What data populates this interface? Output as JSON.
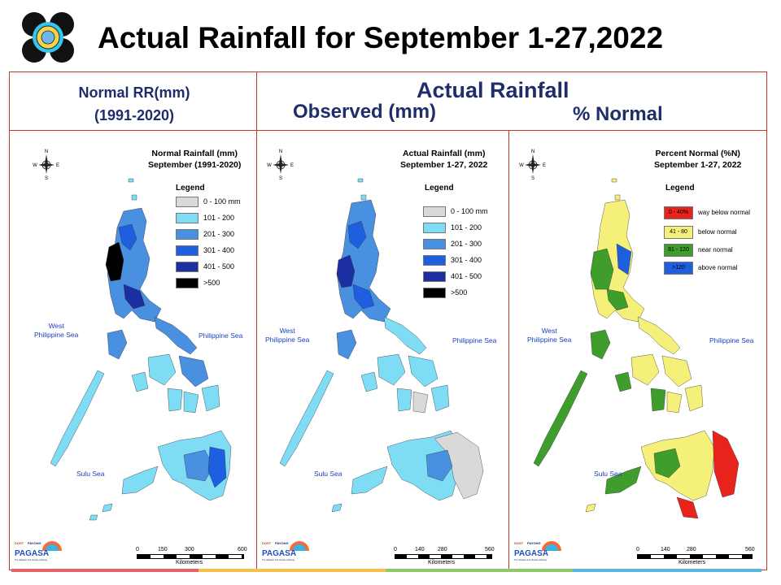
{
  "page": {
    "title": "Actual Rainfall for September 1-27,2022",
    "headers": {
      "normal_line1": "Normal RR(mm)",
      "normal_line2": "(1991-2020)",
      "actual": "Actual Rainfall",
      "observed": "Observed (mm)",
      "percent": "% Normal"
    }
  },
  "panels": {
    "normal": {
      "title_line1": "Normal Rainfall (mm)",
      "title_line2": "September (1991-2020)",
      "legend_title": "Legend",
      "legend": [
        {
          "label": "0 - 100 mm",
          "color": "#d9d9d9"
        },
        {
          "label": "101 - 200",
          "color": "#7fdcf5"
        },
        {
          "label": "201 - 300",
          "color": "#4a90e0"
        },
        {
          "label": "301 - 400",
          "color": "#1e5fe0"
        },
        {
          "label": "401 - 500",
          "color": "#1c2fa0"
        },
        {
          "label": ">500",
          "color": "#000000"
        }
      ],
      "scale_ticks": [
        "0",
        "150",
        "300",
        "600"
      ],
      "scale_unit": "Kilometers"
    },
    "actual": {
      "title_line1": "Actual Rainfall (mm)",
      "title_line2": "September 1-27, 2022",
      "legend_title": "Legend",
      "legend": [
        {
          "label": "0 - 100 mm",
          "color": "#d9d9d9"
        },
        {
          "label": "101 - 200",
          "color": "#7fdcf5"
        },
        {
          "label": "201 - 300",
          "color": "#4a90e0"
        },
        {
          "label": "301 - 400",
          "color": "#1e5fe0"
        },
        {
          "label": "401 - 500",
          "color": "#1c2fa0"
        },
        {
          "label": ">500",
          "color": "#000000"
        }
      ],
      "scale_ticks": [
        "0",
        "140",
        "280",
        "560"
      ],
      "scale_unit": "Kilometers"
    },
    "percent": {
      "title_line1": "Percent Normal (%N)",
      "title_line2": "September 1-27, 2022",
      "legend_title": "Legend",
      "legend": [
        {
          "swatch": "0 - 40%",
          "label": "way below normal",
          "color": "#e8231c"
        },
        {
          "swatch": "41 - 80",
          "label": "below normal",
          "color": "#f5f07a"
        },
        {
          "swatch": "81 - 120",
          "label": "near normal",
          "color": "#3f9d2c"
        },
        {
          "swatch": ">120",
          "label": "above normal",
          "color": "#1e5fe0"
        }
      ],
      "scale_ticks": [
        "0",
        "140",
        "280",
        "560"
      ],
      "scale_unit": "Kilometers"
    }
  },
  "seas": {
    "west_line1": "West",
    "west_line2": "Philippine Sea",
    "east": "Philippine Sea",
    "sulu": "Sulu Sea"
  },
  "compass": {
    "n": "N",
    "s": "S",
    "e": "E",
    "w": "W"
  },
  "logo_text": {
    "dost": "DOST",
    "payong": "PAYONG",
    "pagasa": "PAGASA",
    "tagline": "The Weather and Climate Authority"
  },
  "colors": {
    "frame": "#c0392b",
    "header_text": "#1f2d6b",
    "sea_label": "#1a3fbf"
  }
}
